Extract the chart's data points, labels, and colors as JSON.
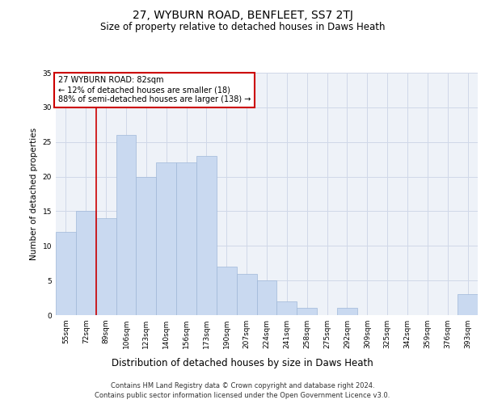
{
  "title": "27, WYBURN ROAD, BENFLEET, SS7 2TJ",
  "subtitle": "Size of property relative to detached houses in Daws Heath",
  "xlabel": "Distribution of detached houses by size in Daws Heath",
  "ylabel": "Number of detached properties",
  "categories": [
    "55sqm",
    "72sqm",
    "89sqm",
    "106sqm",
    "123sqm",
    "140sqm",
    "156sqm",
    "173sqm",
    "190sqm",
    "207sqm",
    "224sqm",
    "241sqm",
    "258sqm",
    "275sqm",
    "292sqm",
    "309sqm",
    "325sqm",
    "342sqm",
    "359sqm",
    "376sqm",
    "393sqm"
  ],
  "values": [
    12,
    15,
    14,
    26,
    20,
    22,
    22,
    23,
    7,
    6,
    5,
    2,
    1,
    0,
    1,
    0,
    0,
    0,
    0,
    0,
    3
  ],
  "bar_color": "#c9d9f0",
  "bar_edgecolor": "#a0b8d8",
  "red_line_x": 1.5,
  "annotation_text": "27 WYBURN ROAD: 82sqm\n← 12% of detached houses are smaller (18)\n88% of semi-detached houses are larger (138) →",
  "annotation_box_color": "#ffffff",
  "annotation_box_edgecolor": "#cc0000",
  "red_line_color": "#cc0000",
  "grid_color": "#d0d8e8",
  "background_color": "#eef2f8",
  "footer_line1": "Contains HM Land Registry data © Crown copyright and database right 2024.",
  "footer_line2": "Contains public sector information licensed under the Open Government Licence v3.0.",
  "ylim": [
    0,
    35
  ],
  "yticks": [
    0,
    5,
    10,
    15,
    20,
    25,
    30,
    35
  ],
  "title_fontsize": 10,
  "subtitle_fontsize": 8.5,
  "xlabel_fontsize": 8.5,
  "ylabel_fontsize": 7.5,
  "tick_fontsize": 6.5,
  "footer_fontsize": 6,
  "annotation_fontsize": 7
}
